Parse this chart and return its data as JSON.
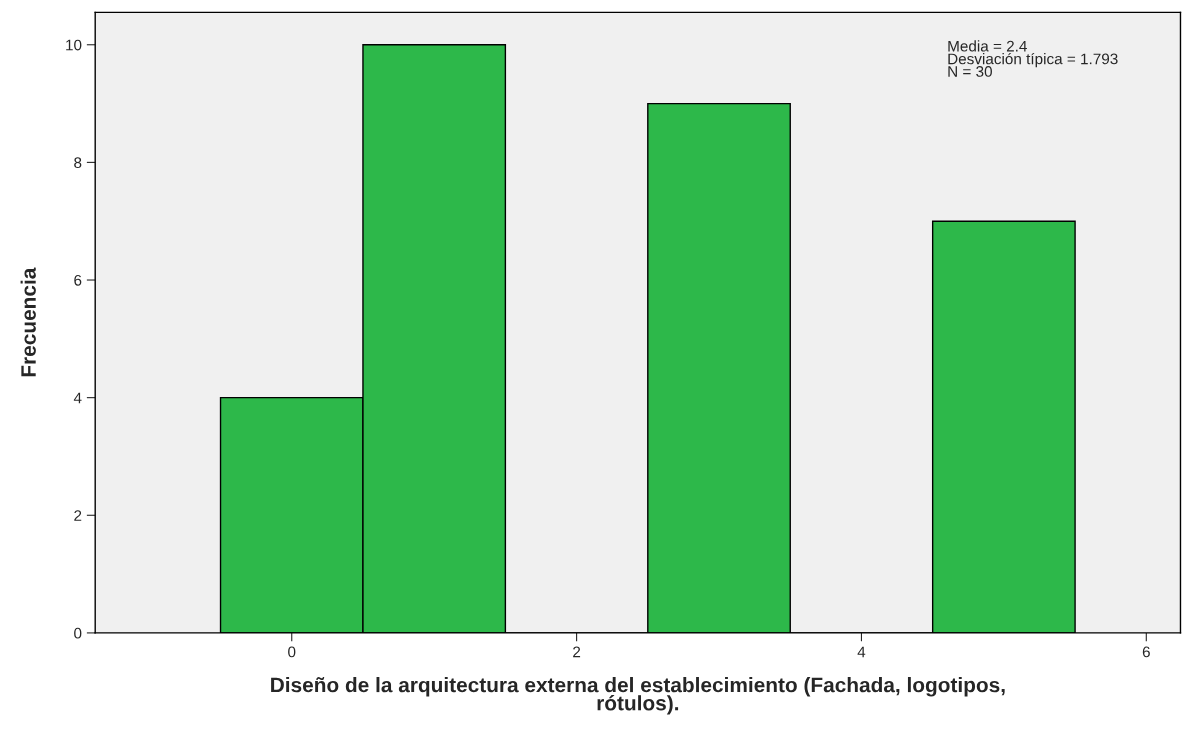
{
  "chart_data": {
    "type": "histogram",
    "xlabel": "Diseño de la arquitectura externa del establecimiento (Fachada, logotipos,\nrótulos).",
    "ylabel": "Frecuencia",
    "bins": [
      -0.5,
      0.5,
      1.5,
      2.5,
      3.5,
      4.5,
      5.5
    ],
    "values": [
      4,
      10,
      0,
      9,
      0,
      7
    ],
    "color": "#2db84a",
    "xlim": [
      -1.38,
      6.24
    ],
    "xticks": [
      0,
      2,
      4,
      6
    ],
    "ylim": [
      0,
      10.55
    ],
    "yticks": [
      0,
      2,
      4,
      6,
      8,
      10
    ],
    "grid": false,
    "annotations": [
      "Media = 2.4\nDesviación típica = 1.793\nN = 30"
    ]
  }
}
